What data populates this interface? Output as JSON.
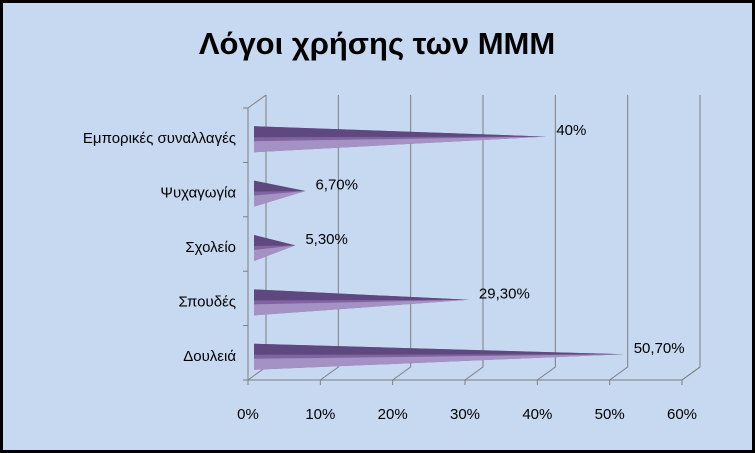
{
  "chart_data": {
    "type": "cone-bar",
    "title": "Λόγοι χρήσης των ΜΜΜ",
    "categories": [
      "Εμπορικές συναλλαγές",
      "Ψυχαγωγία",
      "Σχολείο",
      "Σπουδές",
      "Δουλειά"
    ],
    "values": [
      40,
      6.7,
      5.3,
      29.3,
      50.7
    ],
    "value_labels": [
      "40%",
      "6,70%",
      "5,30%",
      "29,30%",
      "50,70%"
    ],
    "color": "#8064a2",
    "xlim": [
      0,
      60
    ],
    "xticks": [
      {
        "value": 0,
        "label": "0%"
      },
      {
        "value": 10,
        "label": "10%"
      },
      {
        "value": 20,
        "label": "20%"
      },
      {
        "value": 30,
        "label": "30%"
      },
      {
        "value": 40,
        "label": "40%"
      },
      {
        "value": 50,
        "label": "50%"
      },
      {
        "value": 60,
        "label": "60%"
      }
    ],
    "grid": true
  }
}
